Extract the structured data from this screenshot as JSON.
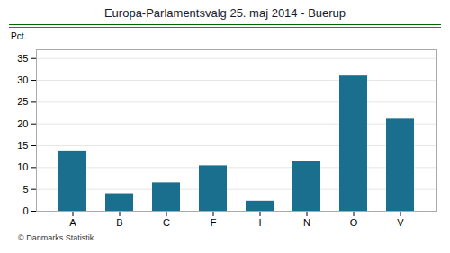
{
  "chart_data": {
    "type": "bar",
    "title": "Europa-Parlamentsvalg 25. maj 2014 - Buerup",
    "categories": [
      "A",
      "B",
      "C",
      "F",
      "I",
      "N",
      "O",
      "V"
    ],
    "values": [
      13.8,
      4.0,
      6.5,
      10.4,
      2.3,
      11.5,
      31.0,
      21.1
    ],
    "color": "#1a6e8e",
    "ylabel": "Pct.",
    "ylim": [
      0,
      37
    ],
    "yticks": [
      0,
      5,
      10,
      15,
      20,
      25,
      30,
      35
    ],
    "grid": true,
    "footer": "© Danmarks Statistik"
  }
}
